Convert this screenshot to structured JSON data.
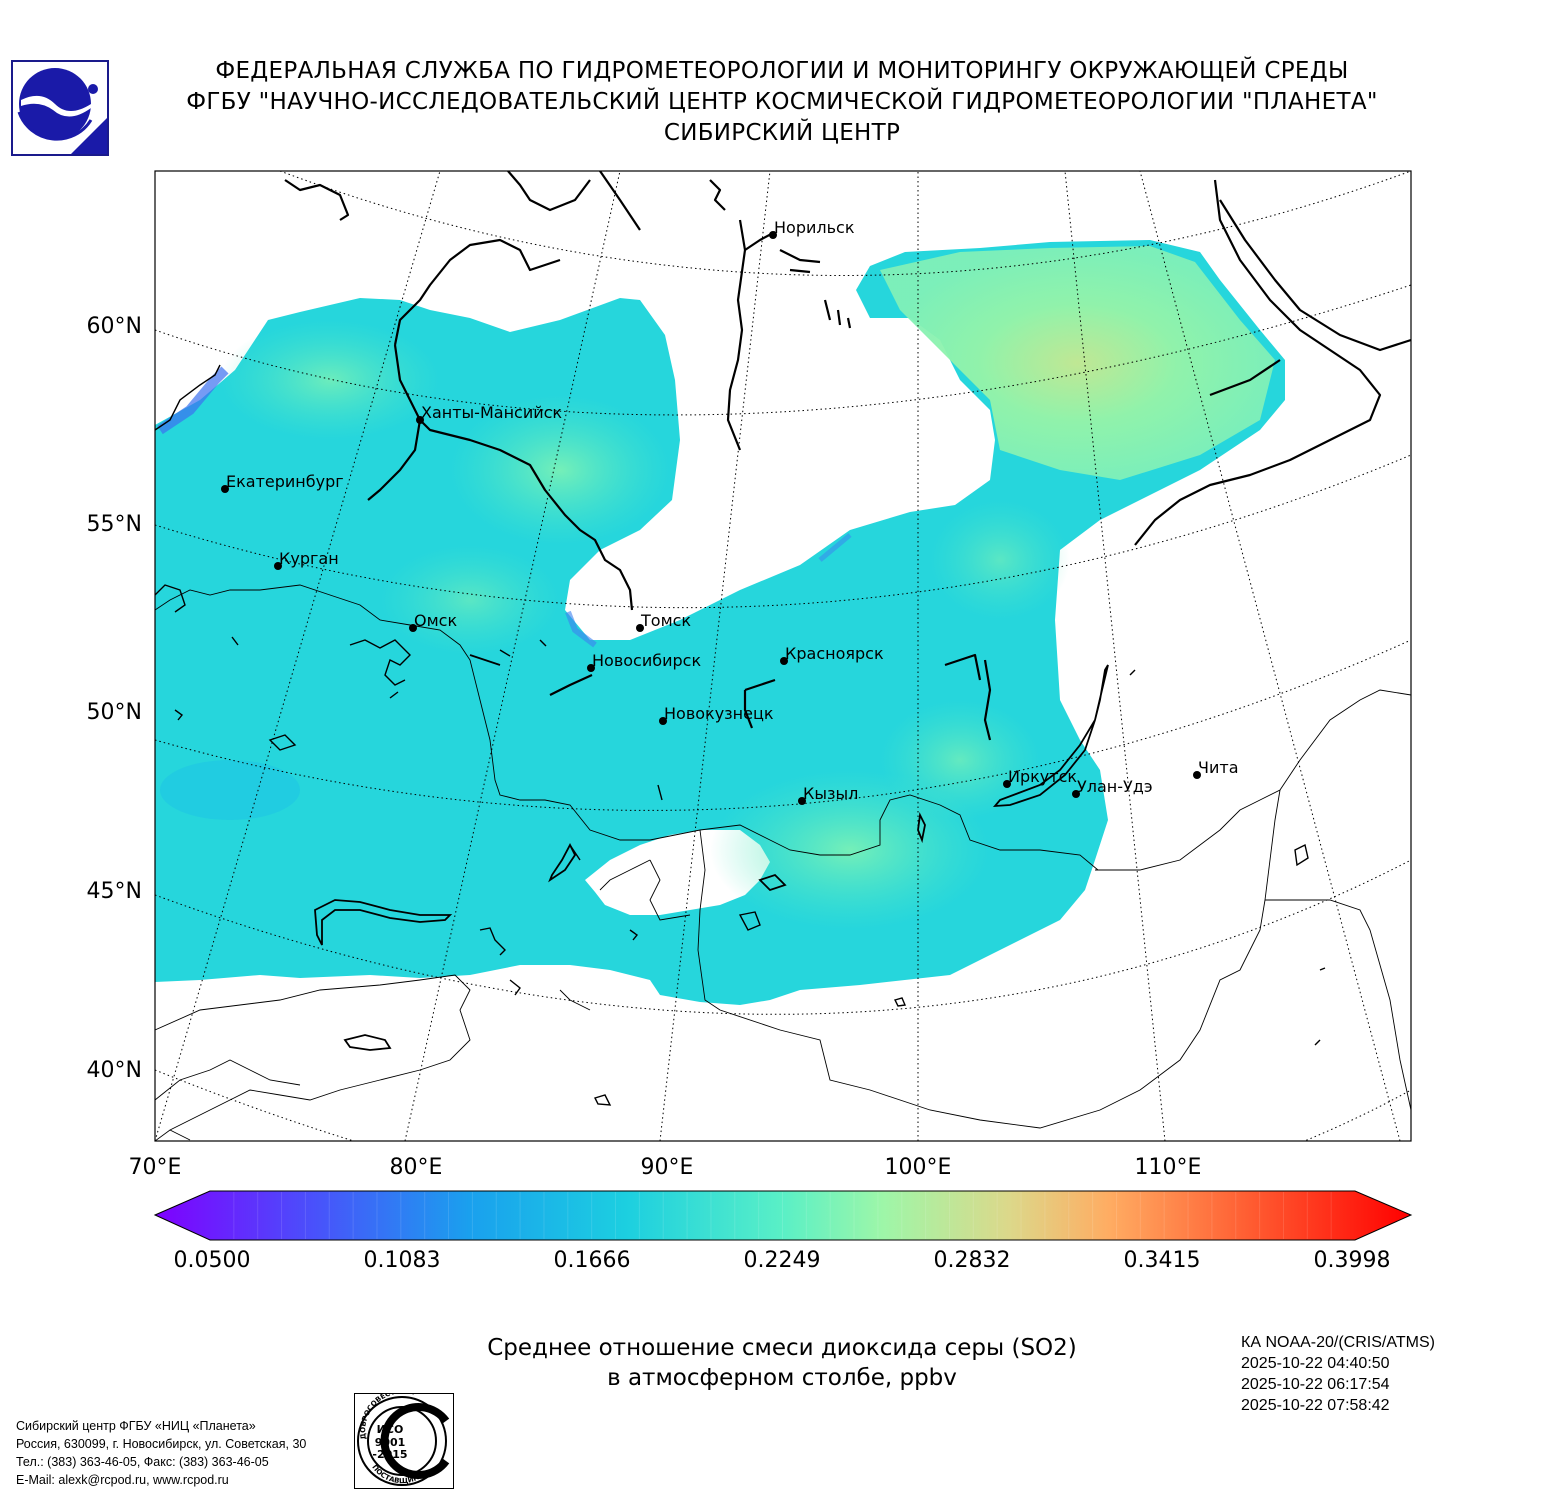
{
  "header": {
    "line1": "ФЕДЕРАЛЬНАЯ СЛУЖБА ПО ГИДРОМЕТЕОРОЛОГИИ И МОНИТОРИНГУ ОКРУЖАЮЩЕЙ СРЕДЫ",
    "line2": "ФГБУ \"НАУЧНО-ИССЛЕДОВАТЕЛЬСКИЙ ЦЕНТР КОСМИЧЕСКОЙ ГИДРОМЕТЕОРОЛОГИИ \"ПЛАНЕТА\"",
    "line3": "СИБИРСКИЙ ЦЕНТР"
  },
  "map": {
    "lat_labels": [
      "60°N",
      "55°N",
      "50°N",
      "45°N",
      "40°N"
    ],
    "lon_labels": [
      "70°E",
      "80°E",
      "90°E",
      "100°E",
      "110°E"
    ],
    "cities": [
      {
        "name": "Норильск"
      },
      {
        "name": "Ханты-Мансийск"
      },
      {
        "name": "Екатеринбург"
      },
      {
        "name": "Курган"
      },
      {
        "name": "Омск"
      },
      {
        "name": "Томск"
      },
      {
        "name": "Новосибирск"
      },
      {
        "name": "Красноярск"
      },
      {
        "name": "Новокузнецк"
      },
      {
        "name": "Кызыл"
      },
      {
        "name": "Иркутск"
      },
      {
        "name": "Улан-Удэ"
      },
      {
        "name": "Чита"
      }
    ]
  },
  "colorbar": {
    "ticks": [
      "0.0500",
      "0.1083",
      "0.1666",
      "0.2249",
      "0.2832",
      "0.3415",
      "0.3998"
    ],
    "colors": [
      "#7f00ff",
      "#3f60fa",
      "#00b4e6",
      "#2adddd",
      "#80ffb4",
      "#d4dd80",
      "#ffb360",
      "#ff6030",
      "#ff0000"
    ]
  },
  "caption": {
    "line1": "Среднее отношение смеси диоксида серы (SO2)",
    "line2": "в атмосферном столбе, ppbv"
  },
  "satellite": {
    "name": "КА NOAA-20/(CRIS/ATMS)",
    "times": [
      "2025-10-22 04:40:50",
      "2025-10-22 06:17:54",
      "2025-10-22 07:58:42"
    ]
  },
  "footer": {
    "line1": "Сибирский центр ФГБУ «НИЦ «Планета»",
    "line2": "Россия, 630099, г. Новосибирск, ул. Советская, 30",
    "line3": "Тел.: (383) 363-46-05, Факс: (383) 363-46-05",
    "line4": "E-Mail: alexk@rcpod.ru, www.rcpod.ru"
  },
  "iso_stamp": {
    "top": "ДОБРОСОВЕСТНЫЙ",
    "name": "ИСО",
    "num1": "9001",
    "num2": "-2015",
    "bottom": "ПОСТАВЩИК"
  }
}
